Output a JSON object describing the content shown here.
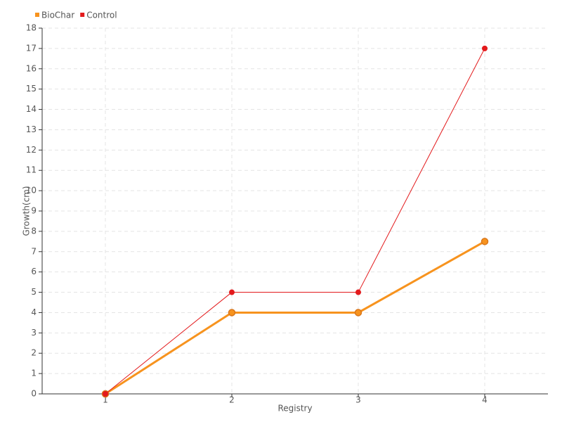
{
  "chart_data": {
    "type": "line",
    "x_label": "Registry",
    "y_label": "Growth(cm)",
    "x": [
      1,
      2,
      3,
      4
    ],
    "series": [
      {
        "name": "BioChar",
        "color": "#f7931e",
        "values": [
          0,
          4,
          4,
          7.5
        ]
      },
      {
        "name": "Control",
        "color": "#e31a1c",
        "values": [
          0,
          5,
          5,
          17
        ]
      }
    ],
    "xlim": [
      0.5,
      4.5
    ],
    "xticks": [
      1,
      2,
      3,
      4
    ],
    "ylim": [
      0,
      18
    ],
    "yticks": [
      0,
      1,
      2,
      3,
      4,
      5,
      6,
      7,
      8,
      9,
      10,
      11,
      12,
      13,
      14,
      15,
      16,
      17,
      18
    ],
    "grid": true,
    "legend": "top-left"
  }
}
